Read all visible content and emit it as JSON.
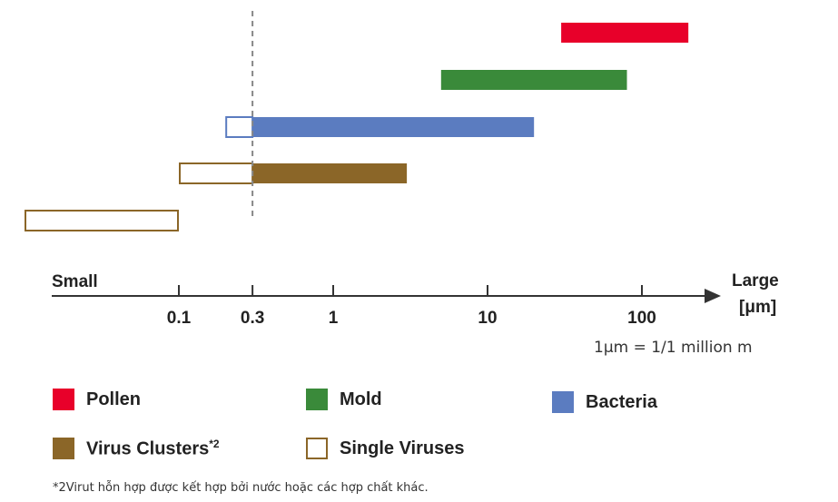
{
  "chart_data": {
    "type": "range-bar",
    "scale": "log",
    "unit": "μm",
    "axis": {
      "left_label": "Small",
      "right_label": "Large",
      "unit_label": "[μm]",
      "ticks": [
        0.1,
        0.3,
        1,
        10,
        100
      ],
      "tick_labels": [
        "0.1",
        "0.3",
        "1",
        "10",
        "100"
      ],
      "reference_line": 0.3
    },
    "unit_note": "1μm = 1/1 million m",
    "series": [
      {
        "key": "pollen",
        "name": "Pollen",
        "color": "#e8002a",
        "style": "filled",
        "min": 30,
        "max": 200
      },
      {
        "key": "mold",
        "name": "Mold",
        "color": "#3a8a3a",
        "style": "filled",
        "min": 5,
        "max": 80
      },
      {
        "key": "bacteria",
        "name": "Bacteria",
        "color": "#5b7cc0",
        "style": "filled",
        "min": 0.3,
        "max": 20,
        "outline_min": 0.2,
        "outline_max": 0.3
      },
      {
        "key": "virus-clusters",
        "name": "Virus Clusters",
        "footnote_marker": "*2",
        "color": "#8b6628",
        "style": "filled",
        "min": 0.3,
        "max": 3,
        "outline_min": 0.1,
        "outline_max": 0.3
      },
      {
        "key": "single-viruses",
        "name": "Single Viruses",
        "color": "#8b6628",
        "style": "outline",
        "min": 0.01,
        "max": 0.1
      }
    ]
  },
  "legend": {
    "items": [
      {
        "key": "pollen",
        "label": "Pollen",
        "color": "#e8002a",
        "style": "filled"
      },
      {
        "key": "mold",
        "label": "Mold",
        "color": "#3a8a3a",
        "style": "filled"
      },
      {
        "key": "bacteria",
        "label": "Bacteria",
        "color": "#5b7cc0",
        "style": "filled"
      },
      {
        "key": "virus-clusters",
        "label": "Virus Clusters",
        "sup": "*2",
        "color": "#8b6628",
        "style": "filled"
      },
      {
        "key": "single-viruses",
        "label": "Single Viruses",
        "color": "#8b6628",
        "style": "outline"
      }
    ]
  },
  "footnote": "*2Virut hỗn hợp được kết hợp bởi nước hoặc các hợp chất khác."
}
